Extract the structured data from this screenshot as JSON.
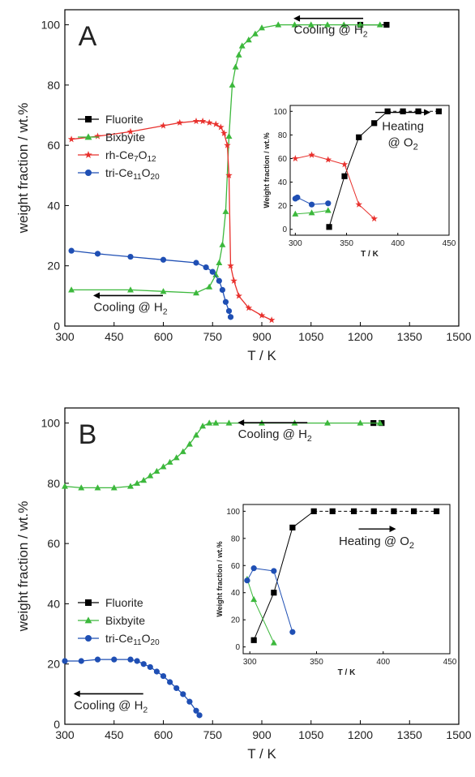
{
  "colors": {
    "Fluorite": "#000000",
    "Bixbyite": "#3cb83c",
    "rh-Ce7O12": "#e8302c",
    "tri-Ce11O20": "#1f4fb4"
  },
  "markers": {
    "Fluorite": "square",
    "Bixbyite": "triangle",
    "rh-Ce7O12": "star",
    "tri-Ce11O20": "circle"
  },
  "chart_data": [
    {
      "type": "scatter",
      "panel_label": "A",
      "xlabel": "T / K",
      "ylabel": "weight fraction / wt.%",
      "xlim": [
        300,
        1500
      ],
      "ylim": [
        0,
        105
      ],
      "xticks": [
        300,
        450,
        600,
        750,
        900,
        1050,
        1200,
        1350,
        1500
      ],
      "yticks": [
        0,
        20,
        40,
        60,
        80,
        100
      ],
      "annotations": [
        {
          "text": "Cooling @ H",
          "sub": "2",
          "arrow": "left",
          "x": 1110,
          "y": 97
        },
        {
          "text": "Cooling @ H",
          "sub": "2",
          "arrow": "left",
          "x": 500,
          "y": 5
        }
      ],
      "legend": {
        "placement": "left",
        "entries": [
          {
            "series": "Fluorite",
            "label": "Fluorite",
            "sub": "",
            "tail": "",
            "sub2": ""
          },
          {
            "series": "Bixbyite",
            "label": "Bixbyite",
            "sub": "",
            "tail": "",
            "sub2": ""
          },
          {
            "series": "rh-Ce7O12",
            "label": "rh-Ce",
            "sub": "7",
            "tail": "O",
            "sub2": "12"
          },
          {
            "series": "tri-Ce11O20",
            "label": "tri-Ce",
            "sub": "11",
            "tail": "O",
            "sub2": "20"
          }
        ]
      },
      "series": [
        {
          "name": "Fluorite",
          "curves": [
            {
              "x": [
                1200,
                1280
              ],
              "y": [
                100,
                100
              ]
            }
          ]
        },
        {
          "name": "Bixbyite",
          "curves": [
            {
              "x": [
                320,
                500,
                600,
                700,
                740,
                760,
                770,
                780,
                790,
                800,
                810,
                820,
                830,
                840,
                860,
                880,
                900,
                950,
                1000,
                1050,
                1100,
                1150,
                1200,
                1260
              ],
              "y": [
                12,
                12,
                11.5,
                11,
                13,
                17,
                21,
                27,
                38,
                63,
                80,
                86,
                90,
                93,
                95,
                97,
                99,
                100,
                100,
                100,
                100,
                100,
                100,
                100
              ]
            }
          ]
        },
        {
          "name": "rh-Ce7O12",
          "curves": [
            {
              "x": [
                320,
                400,
                500,
                600,
                650,
                700,
                720,
                740,
                760,
                775,
                785,
                795,
                800,
                805,
                815,
                830,
                860,
                900,
                930
              ],
              "y": [
                62,
                63,
                64.5,
                66.5,
                67.5,
                68,
                68,
                67.5,
                67,
                66,
                64,
                60,
                50,
                20,
                15,
                10,
                6,
                3.5,
                2
              ]
            }
          ]
        },
        {
          "name": "tri-Ce11O20",
          "curves": [
            {
              "x": [
                320,
                400,
                500,
                600,
                700,
                730,
                750,
                770,
                780,
                790,
                800,
                805
              ],
              "y": [
                25,
                24,
                23,
                22,
                21,
                19.5,
                18,
                15,
                12,
                8,
                5,
                3
              ]
            }
          ]
        }
      ],
      "inset": {
        "ylabel": "Weight fraction / wt.%",
        "xlabel": "T / K",
        "xlim": [
          295,
          450
        ],
        "ylim": [
          -5,
          105
        ],
        "xticks": [
          300,
          350,
          400,
          450
        ],
        "yticks": [
          0,
          20,
          40,
          60,
          80,
          100
        ],
        "annotation": {
          "text": "Heating",
          "line2": "@ O",
          "sub": "2"
        },
        "series": [
          {
            "name": "Fluorite",
            "dashed_from": 390,
            "curves": [
              {
                "x": [
                  333,
                  348,
                  362,
                  377,
                  390,
                  405,
                  420,
                  440
                ],
                "y": [
                  2,
                  45,
                  78,
                  90,
                  100,
                  100,
                  100,
                  100
                ]
              }
            ]
          },
          {
            "name": "Bixbyite",
            "curves": [
              {
                "x": [
                  300,
                  316,
                  332
                ],
                "y": [
                  13,
                  14,
                  16
                ]
              }
            ]
          },
          {
            "name": "rh-Ce7O12",
            "curves": [
              {
                "x": [
                  300,
                  316,
                  332,
                  348,
                  362,
                  377
                ],
                "y": [
                  60,
                  63,
                  59,
                  55,
                  21,
                  9
                ]
              }
            ]
          },
          {
            "name": "tri-Ce11O20",
            "curves": [
              {
                "x": [
                  300,
                  302,
                  316,
                  332
                ],
                "y": [
                  26,
                  27,
                  21,
                  22
                ]
              }
            ]
          }
        ]
      }
    },
    {
      "type": "scatter",
      "panel_label": "B",
      "xlabel": "T / K",
      "ylabel": "weight fraction / wt.%",
      "xlim": [
        300,
        1500
      ],
      "ylim": [
        0,
        105
      ],
      "xticks": [
        300,
        450,
        600,
        750,
        900,
        1050,
        1200,
        1350,
        1500
      ],
      "yticks": [
        0,
        20,
        40,
        60,
        80,
        100
      ],
      "annotations": [
        {
          "text": "Cooling @ H",
          "sub": "2",
          "arrow": "left",
          "x": 940,
          "y": 95
        },
        {
          "text": "Cooling @ H",
          "sub": "2",
          "arrow": "left",
          "x": 440,
          "y": 5
        }
      ],
      "legend": {
        "placement": "left",
        "entries": [
          {
            "series": "Fluorite",
            "label": "Fluorite",
            "sub": "",
            "tail": "",
            "sub2": ""
          },
          {
            "series": "Bixbyite",
            "label": "Bixbyite",
            "sub": "",
            "tail": "",
            "sub2": ""
          },
          {
            "series": "tri-Ce11O20",
            "label": "tri-Ce",
            "sub": "11",
            "tail": "O",
            "sub2": "20"
          }
        ]
      },
      "series": [
        {
          "name": "Fluorite",
          "curves": [
            {
              "x": [
                1240,
                1265
              ],
              "y": [
                100,
                100
              ]
            }
          ]
        },
        {
          "name": "Bixbyite",
          "curves": [
            {
              "x": [
                300,
                350,
                400,
                450,
                500,
                520,
                540,
                560,
                580,
                600,
                620,
                640,
                660,
                680,
                700,
                720,
                740,
                760,
                800,
                900,
                1000,
                1100,
                1200,
                1260
              ],
              "y": [
                79,
                78.5,
                78.5,
                78.5,
                79,
                80,
                81,
                82.5,
                84,
                85.5,
                87,
                88.5,
                90.5,
                93,
                96,
                99,
                100,
                100,
                100,
                100,
                100,
                100,
                100,
                100
              ]
            }
          ]
        },
        {
          "name": "tri-Ce11O20",
          "curves": [
            {
              "x": [
                300,
                350,
                400,
                450,
                500,
                520,
                540,
                560,
                580,
                600,
                620,
                640,
                660,
                680,
                700,
                710
              ],
              "y": [
                21,
                21,
                21.5,
                21.5,
                21.5,
                21,
                20,
                19,
                17.5,
                16,
                14,
                12,
                10,
                7.5,
                4.5,
                3
              ]
            }
          ]
        }
      ],
      "inset": {
        "ylabel": "Weight fraction / wt.%",
        "xlabel": "T / K",
        "xlim": [
          295,
          450
        ],
        "ylim": [
          -5,
          105
        ],
        "xticks": [
          300,
          350,
          400,
          450
        ],
        "yticks": [
          0,
          20,
          40,
          60,
          80,
          100
        ],
        "annotation": {
          "text": "Heating @ O",
          "line2": "",
          "sub": "2"
        },
        "series": [
          {
            "name": "Fluorite",
            "dashed_from": 348,
            "curves": [
              {
                "x": [
                  303,
                  318,
                  332,
                  348,
                  362,
                  378,
                  393,
                  408,
                  423,
                  440
                ],
                "y": [
                  5,
                  40,
                  88,
                  100,
                  100,
                  100,
                  100,
                  100,
                  100,
                  100
                ]
              }
            ]
          },
          {
            "name": "Bixbyite",
            "curves": [
              {
                "x": [
                  298,
                  303,
                  318
                ],
                "y": [
                  50,
                  35,
                  3
                ]
              }
            ]
          },
          {
            "name": "tri-Ce11O20",
            "curves": [
              {
                "x": [
                  298,
                  303,
                  318,
                  332
                ],
                "y": [
                  49,
                  58,
                  56,
                  11
                ]
              }
            ]
          }
        ]
      }
    }
  ]
}
